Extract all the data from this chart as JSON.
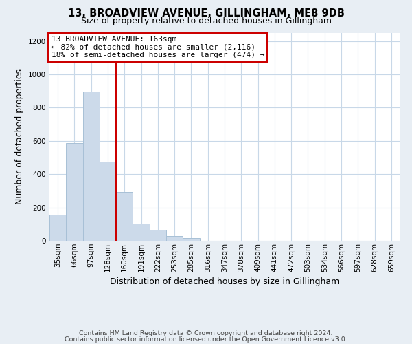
{
  "title": "13, BROADVIEW AVENUE, GILLINGHAM, ME8 9DB",
  "subtitle": "Size of property relative to detached houses in Gillingham",
  "xlabel": "Distribution of detached houses by size in Gillingham",
  "ylabel": "Number of detached properties",
  "bar_labels": [
    "35sqm",
    "66sqm",
    "97sqm",
    "128sqm",
    "160sqm",
    "191sqm",
    "222sqm",
    "253sqm",
    "285sqm",
    "316sqm",
    "347sqm",
    "378sqm",
    "409sqm",
    "441sqm",
    "472sqm",
    "503sqm",
    "534sqm",
    "566sqm",
    "597sqm",
    "628sqm",
    "659sqm"
  ],
  "bar_values": [
    155,
    585,
    895,
    475,
    293,
    105,
    65,
    28,
    15,
    0,
    0,
    0,
    0,
    0,
    0,
    0,
    0,
    0,
    0,
    0,
    0
  ],
  "bar_color": "#ccdaea",
  "bar_edge_color": "#a8c0d6",
  "property_line_color": "#cc0000",
  "property_line_x": 3.5,
  "annotation_line1": "13 BROADVIEW AVENUE: 163sqm",
  "annotation_line2": "← 82% of detached houses are smaller (2,116)",
  "annotation_line3": "18% of semi-detached houses are larger (474) →",
  "ylim": [
    0,
    1250
  ],
  "yticks": [
    0,
    200,
    400,
    600,
    800,
    1000,
    1200
  ],
  "footer_line1": "Contains HM Land Registry data © Crown copyright and database right 2024.",
  "footer_line2": "Contains public sector information licensed under the Open Government Licence v3.0.",
  "bg_color": "#e8eef4",
  "plot_bg_color": "#ffffff",
  "grid_color": "#c8d8e8",
  "title_fontsize": 10.5,
  "subtitle_fontsize": 9,
  "axis_label_fontsize": 9,
  "tick_fontsize": 7.5,
  "annotation_fontsize": 8,
  "footer_fontsize": 6.8
}
